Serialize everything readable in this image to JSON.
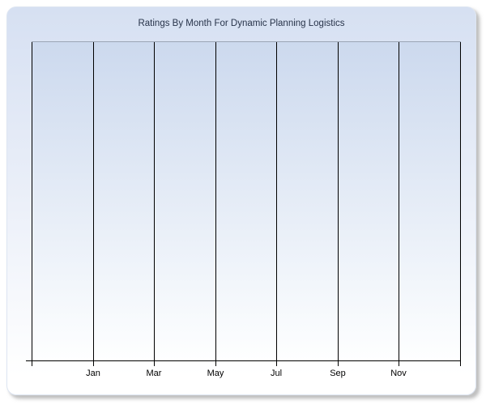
{
  "window": {
    "kind": "chart-panel"
  },
  "chart_data": {
    "type": "line",
    "title": "Ratings By Month For Dynamic Planning Logistics",
    "xlabel": "",
    "ylabel": "",
    "x_tick_labels": [
      "Jan",
      "Mar",
      "May",
      "Jul",
      "Sep",
      "Nov"
    ],
    "x_gridline_count": 8,
    "labeled_gridline_start_index": 1,
    "y_tick_labels": [],
    "series": [],
    "legend": "none",
    "grid": "vertical-only",
    "plot_empty": true
  },
  "colors": {
    "panel_top": "#d6e0f2",
    "panel_bottom": "#ffffff",
    "plot_top": "#ccd9ee",
    "plot_bottom": "#feffff",
    "plot_border_top": "#9aa5b5",
    "gridline": "#000000",
    "axis": "#000000",
    "title_text": "#273349",
    "label_text": "#000000"
  }
}
